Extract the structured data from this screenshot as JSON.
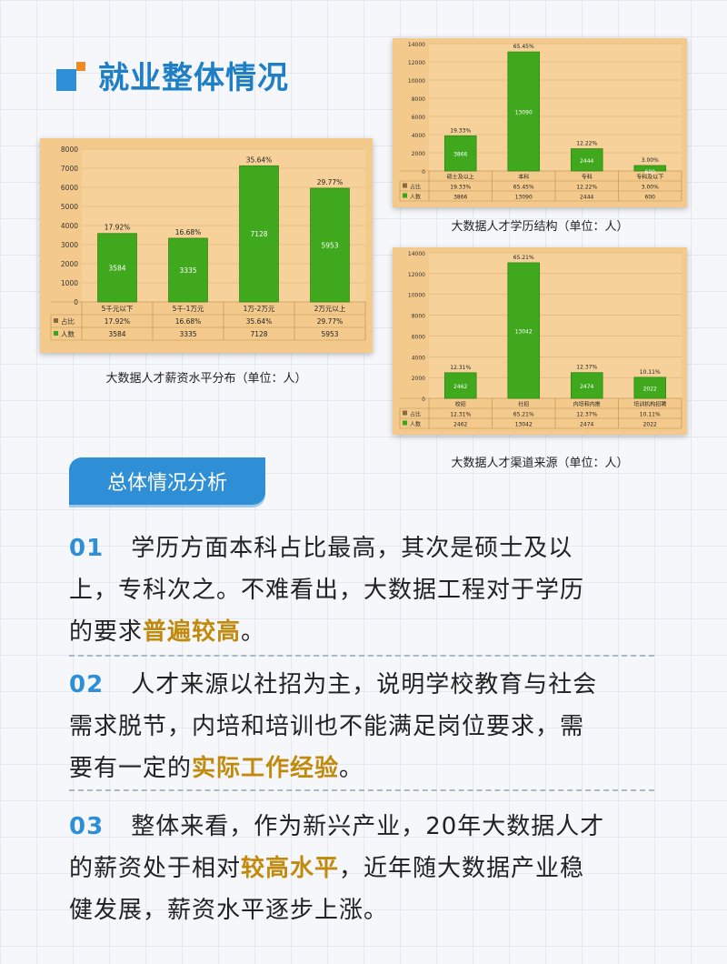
{
  "header": {
    "title": "就业整体情况"
  },
  "chart_data": [
    {
      "type": "bar",
      "id": "salary",
      "caption": "大数据人才薪资水平分布（单位：人）",
      "categories": [
        "5千元以下",
        "5千-1万元",
        "1万-2万元",
        "2万元以上"
      ],
      "ylim": [
        0,
        8000
      ],
      "yticks": [
        0,
        1000,
        2000,
        3000,
        4000,
        5000,
        6000,
        7000,
        8000
      ],
      "series": [
        {
          "name": "占比",
          "values": [
            "17.92%",
            "16.68%",
            "35.64%",
            "29.77%"
          ]
        },
        {
          "name": "人数",
          "values": [
            3584,
            3335,
            7128,
            5953
          ]
        }
      ]
    },
    {
      "type": "bar",
      "id": "education",
      "caption": "大数据人才学历结构（单位：人）",
      "categories": [
        "硕士及以上",
        "本科",
        "专科",
        "专科及以下"
      ],
      "ylim": [
        0,
        14000
      ],
      "yticks": [
        0,
        2000,
        4000,
        6000,
        8000,
        10000,
        12000,
        14000
      ],
      "series": [
        {
          "name": "占比",
          "values": [
            "19.33%",
            "65.45%",
            "12.22%",
            "3.00%"
          ]
        },
        {
          "name": "人数",
          "values": [
            3866,
            13090,
            2444,
            600
          ]
        }
      ]
    },
    {
      "type": "bar",
      "id": "channel",
      "caption": "大数据人才渠道来源（单位：人）",
      "categories": [
        "校招",
        "社招",
        "内培和内推",
        "培训机构招聘"
      ],
      "ylim": [
        0,
        14000
      ],
      "yticks": [
        0,
        2000,
        4000,
        6000,
        8000,
        10000,
        12000,
        14000
      ],
      "series": [
        {
          "name": "占比",
          "values": [
            "12.31%",
            "65.21%",
            "12.37%",
            "10.11%"
          ]
        },
        {
          "name": "人数",
          "values": [
            2462,
            13042,
            2474,
            2022
          ]
        }
      ]
    }
  ],
  "analysis": {
    "title": "总体情况分析",
    "points": [
      {
        "num": "01",
        "lines": [
          "学历方面本科占比最高，其次是硕士及以",
          "上，专科次之。不难看出，大数据工程对于学历",
          "的要求"
        ],
        "highlight": "普遍较高",
        "tail": "。"
      },
      {
        "num": "02",
        "lines": [
          "人才来源以社招为主，说明学校教育与社会",
          "需求脱节，内培和培训也不能满足岗位要求，需",
          "要有一定的"
        ],
        "highlight": "实际工作经验",
        "tail": "。"
      },
      {
        "num": "03",
        "lines": [
          "整体来看，作为新兴产业，20年大数据人才",
          "的薪资处于相对"
        ],
        "highlight": "较高水平",
        "tail": "，近年随大数据产业稳",
        "after": "健发展，薪资水平逐步上涨。"
      }
    ]
  }
}
